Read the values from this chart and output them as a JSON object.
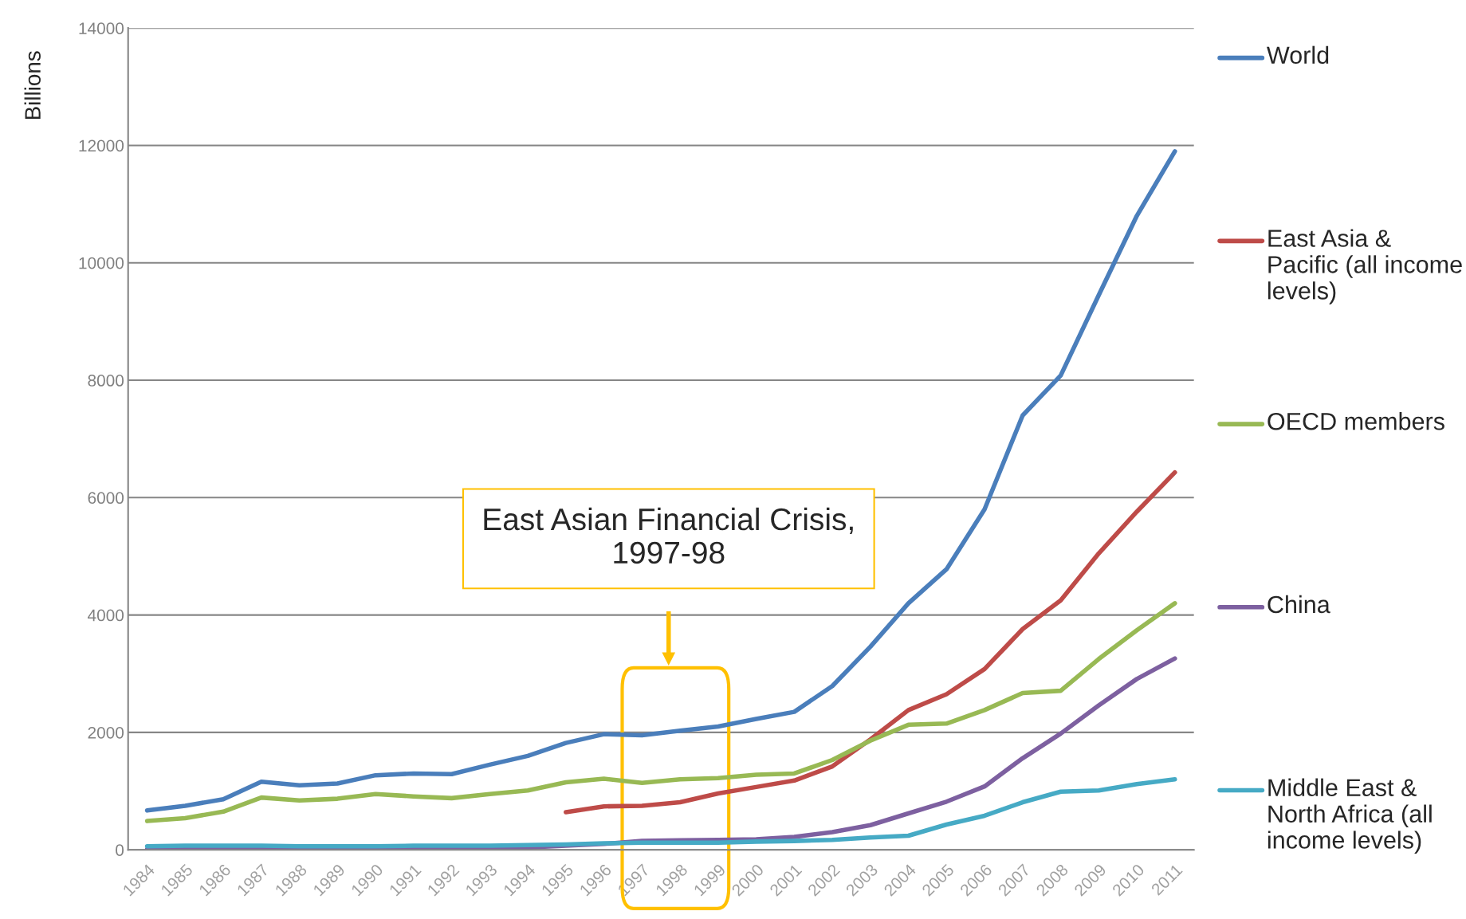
{
  "chart_data": {
    "type": "line",
    "ylabel": "Billions",
    "categories": [
      "1984",
      "1985",
      "1986",
      "1987",
      "1988",
      "1989",
      "1990",
      "1991",
      "1992",
      "1993",
      "1994",
      "1995",
      "1996",
      "1997",
      "1998",
      "1999",
      "2000",
      "2001",
      "2002",
      "2003",
      "2004",
      "2005",
      "2006",
      "2007",
      "2008",
      "2009",
      "2010",
      "2011"
    ],
    "series": [
      {
        "name": "World",
        "color": "#4a7ebb",
        "values": [
          670,
          750,
          860,
          1160,
          1100,
          1130,
          1270,
          1300,
          1290,
          1450,
          1600,
          1820,
          1970,
          1950,
          2030,
          2100,
          2230,
          2350,
          2790,
          3460,
          4200,
          4780,
          5800,
          7400,
          8080,
          9450,
          10800,
          11900
        ]
      },
      {
        "name": "East Asia & Pacific (all income levels)",
        "color": "#be4b48",
        "values": [
          null,
          null,
          null,
          null,
          null,
          null,
          null,
          null,
          null,
          null,
          null,
          640,
          740,
          750,
          810,
          960,
          1070,
          1180,
          1420,
          1880,
          2380,
          2650,
          3080,
          3760,
          4250,
          5050,
          5760,
          6430
        ]
      },
      {
        "name": "OECD members",
        "color": "#98b954",
        "values": [
          490,
          540,
          650,
          890,
          840,
          870,
          950,
          910,
          880,
          950,
          1010,
          1150,
          1210,
          1140,
          1200,
          1220,
          1280,
          1300,
          1530,
          1860,
          2130,
          2150,
          2380,
          2670,
          2710,
          3250,
          3740,
          4200
        ]
      },
      {
        "name": "China",
        "color": "#7d60a0",
        "values": [
          10,
          10,
          10,
          20,
          20,
          20,
          20,
          30,
          30,
          30,
          40,
          70,
          100,
          150,
          160,
          170,
          180,
          220,
          300,
          420,
          620,
          820,
          1080,
          1560,
          1980,
          2460,
          2910,
          3260
        ]
      },
      {
        "name": "Middle East & North Africa (all income levels)",
        "color": "#46aac5",
        "values": [
          60,
          70,
          70,
          70,
          60,
          60,
          60,
          70,
          70,
          70,
          80,
          90,
          110,
          120,
          120,
          120,
          140,
          150,
          170,
          210,
          240,
          430,
          580,
          810,
          990,
          1010,
          1120,
          1200
        ]
      }
    ],
    "ylim": [
      0,
      14000
    ],
    "yticks": [
      0,
      2000,
      4000,
      6000,
      8000,
      10000,
      12000,
      14000
    ],
    "grid": "y",
    "legend": "right",
    "marker": "none",
    "line_style": "solid",
    "annotations": [
      "East Asian Financial Crisis, 1997-98"
    ]
  }
}
